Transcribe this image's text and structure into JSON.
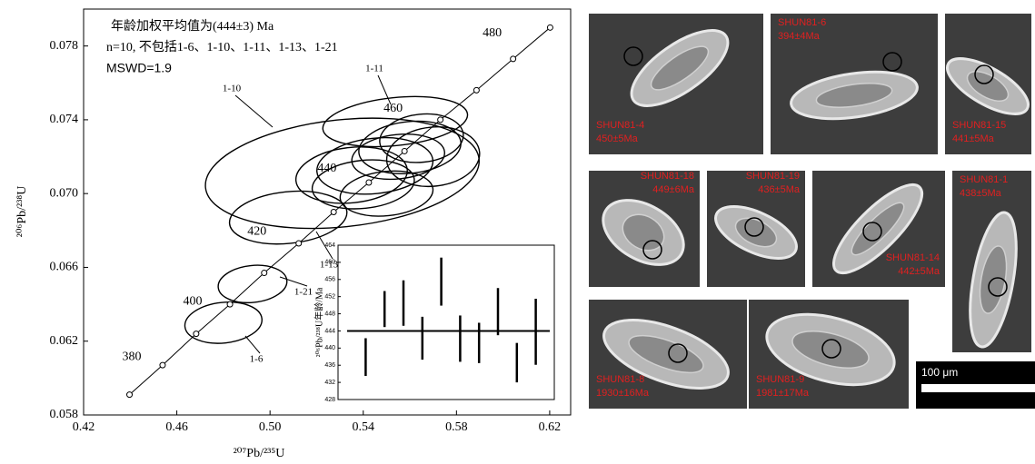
{
  "chart_data": [
    {
      "type": "concordia",
      "xlabel": "²⁰⁷Pb/²³⁵U",
      "ylabel": "²⁰⁶Pb/²³⁸U",
      "annotations": [
        "年龄加权平均值为(444±3) Ma",
        "n=10, 不包括1-6、1-10、1-11、1-13、1-21",
        "MSWD=1.9"
      ],
      "xlim": [
        0.42,
        0.629
      ],
      "ylim": [
        0.058,
        0.08
      ],
      "xticks": [
        {
          "value": 0.42,
          "label": "0.42"
        },
        0.46,
        {
          "value": 0.5,
          "label": "0.50"
        },
        0.54,
        0.58,
        0.62
      ],
      "yticks": [
        0.058,
        0.062,
        0.066,
        {
          "value": 0.07,
          "label": "0.070"
        },
        0.074,
        0.078
      ],
      "concordia": {
        "ages": [
          370,
          380,
          390,
          400,
          410,
          420,
          430,
          440,
          450,
          460,
          470,
          480,
          490
        ],
        "x": [
          0.4397,
          0.4539,
          0.4683,
          0.4828,
          0.4975,
          0.5123,
          0.5273,
          0.5424,
          0.5577,
          0.5731,
          0.5886,
          0.6043,
          0.6202
        ],
        "y": [
          0.0591,
          0.0607,
          0.0624,
          0.064,
          0.0657,
          0.0673,
          0.069,
          0.0706,
          0.0723,
          0.074,
          0.0756,
          0.0773,
          0.079
        ],
        "labeled_ages": [
          380,
          400,
          420,
          440,
          460,
          480
        ]
      },
      "ellipses": [
        {
          "name": "1-10",
          "x": 0.531,
          "x_err": 0.059,
          "y": 0.0711,
          "y_err": 0.0029
        },
        {
          "name": "1-11",
          "x": 0.5537,
          "x_err": 0.0312,
          "y": 0.0739,
          "y_err": 0.0013
        },
        {
          "name": "1-13",
          "x": 0.5078,
          "x_err": 0.0253,
          "y": 0.0687,
          "y_err": 0.0014
        },
        {
          "name": "1-21",
          "x": 0.4925,
          "x_err": 0.0148,
          "y": 0.0651,
          "y_err": 0.001
        },
        {
          "name": "1-6",
          "x": 0.48,
          "x_err": 0.0166,
          "y": 0.063,
          "y_err": 0.0011
        },
        {
          "x": 0.545,
          "x_err": 0.025,
          "y": 0.0715,
          "y_err": 0.0015
        },
        {
          "x": 0.555,
          "x_err": 0.02,
          "y": 0.072,
          "y_err": 0.0012
        },
        {
          "x": 0.54,
          "x_err": 0.022,
          "y": 0.0705,
          "y_err": 0.0013
        },
        {
          "x": 0.56,
          "x_err": 0.022,
          "y": 0.0725,
          "y_err": 0.0014
        },
        {
          "x": 0.55,
          "x_err": 0.02,
          "y": 0.07,
          "y_err": 0.0012
        },
        {
          "x": 0.565,
          "x_err": 0.018,
          "y": 0.073,
          "y_err": 0.0013
        },
        {
          "x": 0.535,
          "x_err": 0.024,
          "y": 0.071,
          "y_err": 0.0015
        },
        {
          "x": 0.57,
          "x_err": 0.02,
          "y": 0.072,
          "y_err": 0.0016
        }
      ]
    },
    {
      "type": "errorbar",
      "ylabel": "²⁰⁶Pb/²³⁸U年龄/Ma",
      "ylim": [
        428,
        464
      ],
      "yticks": [
        428,
        432,
        436,
        440,
        444,
        448,
        452,
        456,
        460,
        464
      ],
      "values": [
        437.9,
        449.1,
        450.5,
        442.3,
        455.5,
        442.2,
        441.2,
        448.5,
        436.6,
        443.8
      ],
      "errors": [
        4.4,
        4.2,
        5.3,
        5.0,
        5.6,
        5.4,
        4.7,
        5.5,
        4.6,
        7.7
      ],
      "mean": 444
    }
  ],
  "images": [
    {
      "label": "SHUN81-4",
      "age": "450±5Ma"
    },
    {
      "label": "SHUN81-6",
      "age": "394±4Ma"
    },
    {
      "label": "SHUN81-15",
      "age": "441±5Ma"
    },
    {
      "label": "SHUN81-18",
      "age": "449±6Ma"
    },
    {
      "label": "SHUN81-19",
      "age": "436±5Ma"
    },
    {
      "label": "SHUN81-14",
      "age": "442±5Ma"
    },
    {
      "label": "SHUN81-1",
      "age": "438±5Ma"
    },
    {
      "label": "SHUN81-8",
      "age": "1930±16Ma"
    },
    {
      "label": "SHUN81-9",
      "age": "1981±17Ma"
    }
  ],
  "scale_bar": "100 μm"
}
